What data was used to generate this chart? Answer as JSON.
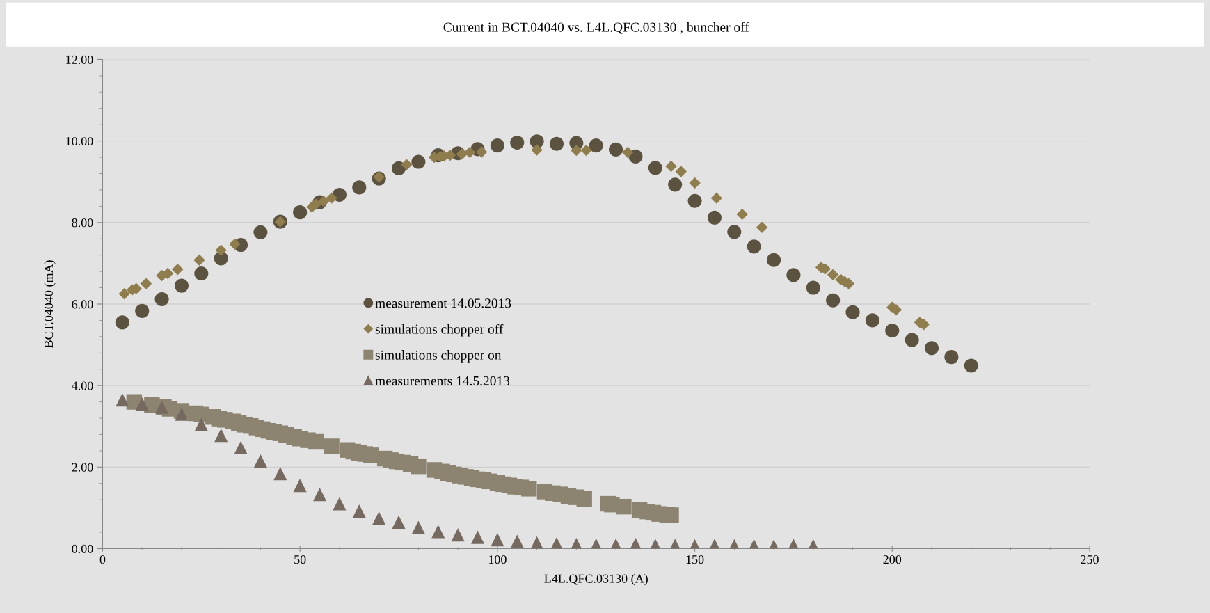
{
  "chart_data": {
    "type": "scatter",
    "title": "Current in BCT.04040 vs. L4L.QFC.03130 , buncher off",
    "xlabel": "L4L.QFC.03130 (A)",
    "ylabel": "BCT.04040 (mA)",
    "xlim": [
      0,
      250
    ],
    "xticks": [
      0,
      50,
      100,
      150,
      200,
      250
    ],
    "ylim": [
      0,
      12
    ],
    "yticks": [
      {
        "value": 0,
        "label": "0.00"
      },
      {
        "value": 2,
        "label": "2.00"
      },
      {
        "value": 4,
        "label": "4.00"
      },
      {
        "value": 6,
        "label": "6.00"
      },
      {
        "value": 8,
        "label": "8.00"
      },
      {
        "value": 10,
        "label": "10.00"
      },
      {
        "value": 12,
        "label": "12.00"
      }
    ],
    "grid": "y",
    "legend": "center left",
    "series": [
      {
        "name": "measurement 14.05.2013",
        "color": "#5c5240",
        "marker": "circle",
        "x": [
          5,
          10,
          15,
          20,
          25,
          30,
          35,
          40,
          45,
          50,
          55,
          60,
          65,
          70,
          75,
          80,
          85,
          90,
          95,
          100,
          105,
          110,
          115,
          120,
          125,
          130,
          135,
          140,
          145,
          150,
          155,
          160,
          165,
          170,
          175,
          180,
          185,
          190,
          195,
          200,
          205,
          210,
          215,
          220
        ],
        "values": [
          5.55,
          5.83,
          6.12,
          6.45,
          6.75,
          7.12,
          7.45,
          7.76,
          8.02,
          8.25,
          8.5,
          8.68,
          8.86,
          9.08,
          9.33,
          9.49,
          9.65,
          9.7,
          9.8,
          9.89,
          9.96,
          9.99,
          9.93,
          9.95,
          9.89,
          9.79,
          9.62,
          9.34,
          8.93,
          8.53,
          8.12,
          7.77,
          7.41,
          7.08,
          6.71,
          6.4,
          6.09,
          5.8,
          5.6,
          5.35,
          5.12,
          4.92,
          4.7,
          4.49
        ]
      },
      {
        "name": "simulations chopper off",
        "color": "#8f7d4e",
        "marker": "diamond",
        "x": [
          5.5,
          7.5,
          8.5,
          11,
          15,
          16.5,
          19,
          24.5,
          30,
          33.5,
          45,
          53,
          54,
          56,
          58,
          70,
          77,
          84,
          85.5,
          86.5,
          88,
          91,
          93,
          96,
          110,
          120,
          122.5,
          133,
          144,
          146.5,
          150,
          155.5,
          162,
          167,
          182,
          183,
          185,
          187,
          188,
          189,
          200,
          201,
          207,
          208
        ],
        "values": [
          6.25,
          6.35,
          6.38,
          6.5,
          6.7,
          6.75,
          6.85,
          7.08,
          7.32,
          7.47,
          8.02,
          8.38,
          8.45,
          8.52,
          8.6,
          9.12,
          9.42,
          9.6,
          9.62,
          9.63,
          9.65,
          9.68,
          9.72,
          9.73,
          9.78,
          9.77,
          9.77,
          9.72,
          9.38,
          9.25,
          8.97,
          8.6,
          8.2,
          7.88,
          6.9,
          6.86,
          6.72,
          6.6,
          6.55,
          6.5,
          5.92,
          5.86,
          5.55,
          5.5
        ]
      },
      {
        "name": "simulations chopper on",
        "color": "#8c8470",
        "marker": "square",
        "x": [
          8,
          12.5,
          15.5,
          17,
          20,
          23.5,
          25,
          28,
          29.5,
          31,
          33,
          34.5,
          36,
          37.5,
          39,
          40.5,
          42,
          43.5,
          45,
          46.5,
          48.5,
          50,
          52,
          54,
          58,
          62,
          63.5,
          65,
          66.5,
          68,
          71.5,
          73,
          74.5,
          76,
          78,
          80,
          84,
          86,
          87.5,
          89,
          90.5,
          92,
          93.5,
          95,
          96.5,
          98,
          100,
          101.5,
          103,
          104.5,
          106,
          108,
          112,
          114,
          116,
          118,
          120,
          122,
          128,
          129,
          132,
          136,
          138,
          139.5,
          141,
          143,
          144
        ],
        "values": [
          3.6,
          3.53,
          3.47,
          3.43,
          3.38,
          3.32,
          3.29,
          3.23,
          3.19,
          3.16,
          3.12,
          3.08,
          3.04,
          3.01,
          2.97,
          2.93,
          2.89,
          2.86,
          2.83,
          2.79,
          2.74,
          2.7,
          2.66,
          2.62,
          2.51,
          2.42,
          2.38,
          2.35,
          2.32,
          2.29,
          2.21,
          2.17,
          2.14,
          2.11,
          2.07,
          2.02,
          1.93,
          1.89,
          1.85,
          1.82,
          1.79,
          1.76,
          1.73,
          1.7,
          1.68,
          1.65,
          1.61,
          1.58,
          1.55,
          1.52,
          1.5,
          1.47,
          1.4,
          1.36,
          1.33,
          1.29,
          1.26,
          1.22,
          1.1,
          1.08,
          1.03,
          0.95,
          0.91,
          0.88,
          0.85,
          0.83,
          0.82
        ]
      },
      {
        "name": "measurements 14.5.2013",
        "color": "#766a60",
        "marker": "triangle",
        "x": [
          5,
          10,
          15,
          20,
          25,
          30,
          35,
          40,
          45,
          50,
          55,
          60,
          65,
          70,
          75,
          80,
          85,
          90,
          95,
          100,
          105,
          110,
          115,
          120,
          125,
          130,
          135,
          140,
          145,
          150,
          155,
          160,
          165,
          170,
          175,
          180
        ],
        "values": [
          3.65,
          3.55,
          3.47,
          3.3,
          3.05,
          2.78,
          2.48,
          2.15,
          1.84,
          1.55,
          1.33,
          1.1,
          0.92,
          0.75,
          0.65,
          0.52,
          0.42,
          0.34,
          0.28,
          0.22,
          0.18,
          0.14,
          0.12,
          0.1,
          0.09,
          0.09,
          0.1,
          0.08,
          0.08,
          0.07,
          0.08,
          0.07,
          0.07,
          0.06,
          0.08,
          0.07
        ]
      }
    ]
  }
}
